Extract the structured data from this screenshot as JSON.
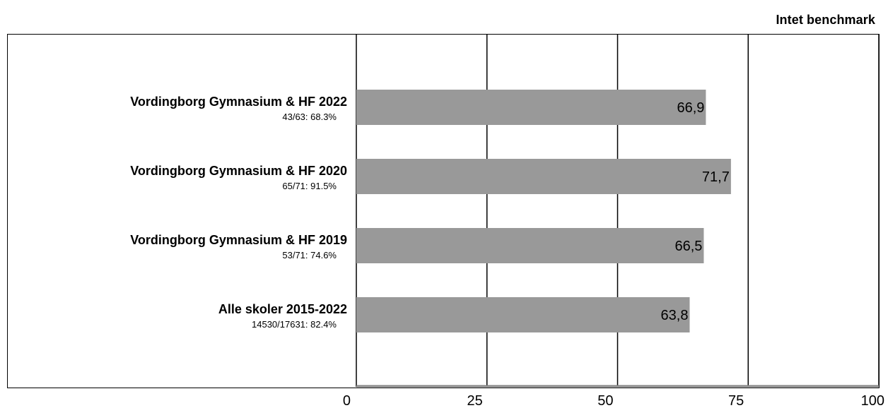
{
  "benchmark_label": "Intet benchmark",
  "colors": {
    "bar": "#999999",
    "grid": "#000000",
    "axis": "#888888"
  },
  "chart_data": {
    "type": "bar",
    "orientation": "horizontal",
    "title": "",
    "xlabel": "",
    "ylabel": "",
    "xlim": [
      0,
      100
    ],
    "x_ticks": [
      0,
      25,
      50,
      75,
      100
    ],
    "x_tick_labels": [
      "0",
      "25",
      "50",
      "75",
      "100"
    ],
    "grid": true,
    "categories": [
      "Vordingborg Gymnasium & HF 2022",
      "Vordingborg Gymnasium & HF 2020",
      "Vordingborg Gymnasium & HF 2019",
      "Alle skoler 2015-2022"
    ],
    "subtitles": [
      "43/63: 68.3%",
      "65/71: 91.5%",
      "53/71: 74.6%",
      "14530/17631: 82.4%"
    ],
    "values": [
      66.9,
      71.7,
      66.5,
      63.8
    ],
    "value_labels": [
      "66,9",
      "71,7",
      "66,5",
      "63,8"
    ]
  }
}
